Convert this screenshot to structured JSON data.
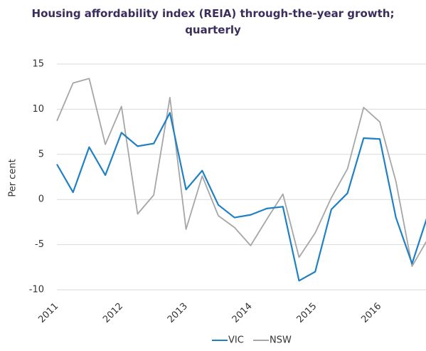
{
  "chart_data": {
    "type": "line",
    "title": "Housing affordability index (REIA) through-the-year growth; quarterly",
    "y_label": "Per cent",
    "categories": [
      "2011",
      null,
      null,
      null,
      "2012",
      null,
      null,
      null,
      "2013",
      null,
      null,
      null,
      "2014",
      null,
      null,
      null,
      "2015",
      null,
      null,
      null,
      "2016",
      null,
      null,
      null
    ],
    "series": [
      {
        "name": "VIC",
        "color": "#1f80c3",
        "values": [
          3.9,
          0.8,
          5.8,
          2.7,
          7.4,
          5.9,
          6.2,
          9.6,
          1.1,
          3.2,
          -0.6,
          -2.0,
          -1.7,
          -1.0,
          -0.8,
          -9.0,
          -8.0,
          -1.1,
          0.7,
          6.8,
          6.7,
          -2.0,
          -7.1,
          -1.6
        ]
      },
      {
        "name": "NSW",
        "color": "#a6a6a6",
        "values": [
          8.7,
          12.9,
          13.4,
          6.1,
          10.3,
          -1.6,
          0.5,
          11.3,
          -3.3,
          2.6,
          -1.8,
          -3.1,
          -5.1,
          -2.2,
          0.6,
          -6.4,
          -3.7,
          0.2,
          3.4,
          10.2,
          8.6,
          2.0,
          -7.4,
          -4.3
        ]
      }
    ],
    "ylim": [
      -10,
      15
    ],
    "yticks": [
      -10,
      -5,
      0,
      5,
      10,
      15
    ],
    "grid": true,
    "legend": "bottom"
  }
}
